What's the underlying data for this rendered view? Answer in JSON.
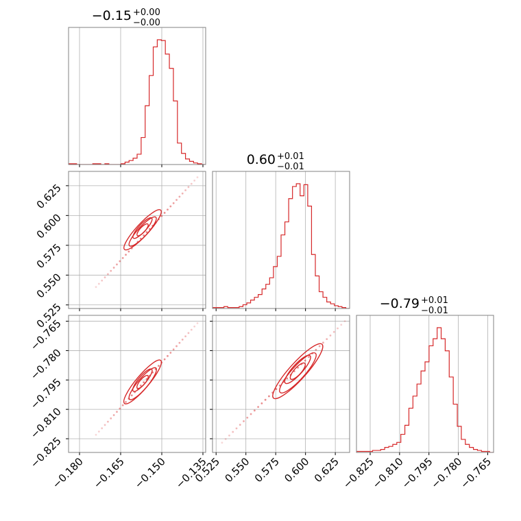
{
  "chart_data": {
    "type": "corner",
    "color": "#d62728",
    "grid": true,
    "parameters": 3,
    "titles": [
      {
        "main": "−0.15",
        "sup": "+0.00",
        "sub": "−0.00"
      },
      {
        "main": "0.60",
        "sup": "+0.01",
        "sub": "−0.01"
      },
      {
        "main": "−0.79",
        "sup": "+0.01",
        "sub": "−0.01"
      }
    ],
    "ranges": [
      [
        -0.184,
        -0.134
      ],
      [
        0.522,
        0.637
      ],
      [
        -0.832,
        -0.762
      ]
    ],
    "ticks": [
      {
        "values": [
          -0.18,
          -0.165,
          -0.15,
          -0.135
        ],
        "labels": [
          "−0.180",
          "−0.165",
          "−0.150",
          "−0.135"
        ]
      },
      {
        "values": [
          0.525,
          0.55,
          0.575,
          0.6,
          0.625
        ],
        "labels": [
          "0.525",
          "0.550",
          "0.575",
          "0.600",
          "0.625"
        ]
      },
      {
        "values": [
          -0.825,
          -0.81,
          -0.795,
          -0.78,
          -0.765
        ],
        "labels": [
          "−0.825",
          "−0.810",
          "−0.795",
          "−0.780",
          "−0.765"
        ]
      }
    ],
    "histograms": [
      {
        "counts": [
          1,
          1,
          0,
          0,
          0,
          0,
          1,
          1,
          0,
          1,
          0,
          0,
          0,
          1,
          3,
          5,
          8,
          13,
          34,
          74,
          112,
          148,
          157,
          156,
          139,
          121,
          80,
          27,
          14,
          7,
          4,
          2,
          1,
          0
        ]
      },
      {
        "counts": [
          1,
          1,
          1,
          2,
          1,
          1,
          1,
          2,
          4,
          6,
          9,
          12,
          15,
          21,
          26,
          33,
          45,
          56,
          79,
          93,
          118,
          131,
          134,
          121,
          133,
          110,
          58,
          35,
          18,
          12,
          7,
          5,
          3,
          2,
          1,
          0
        ]
      },
      {
        "counts": [
          1,
          1,
          1,
          1,
          2,
          2,
          3,
          5,
          6,
          8,
          10,
          18,
          27,
          44,
          56,
          68,
          81,
          90,
          106,
          113,
          124,
          113,
          101,
          75,
          48,
          26,
          13,
          8,
          5,
          3,
          2,
          1,
          1,
          0
        ]
      }
    ],
    "pair_samples": [
      {
        "x_param": 0,
        "y_param": 1,
        "trend": [
          [
            -0.174,
            0.54
          ],
          [
            -0.137,
            0.632
          ]
        ],
        "core": [
          [
            -0.163,
            0.573
          ],
          [
            -0.151,
            0.603
          ]
        ]
      },
      {
        "x_param": 0,
        "y_param": 2,
        "trend": [
          [
            -0.174,
            -0.823
          ],
          [
            -0.137,
            -0.766
          ]
        ],
        "core": [
          [
            -0.163,
            -0.806
          ],
          [
            -0.151,
            -0.786
          ]
        ]
      },
      {
        "x_param": 1,
        "y_param": 2,
        "trend": [
          [
            0.53,
            -0.827
          ],
          [
            0.633,
            -0.765
          ]
        ],
        "core": [
          [
            0.575,
            -0.803
          ],
          [
            0.612,
            -0.778
          ]
        ]
      }
    ]
  }
}
